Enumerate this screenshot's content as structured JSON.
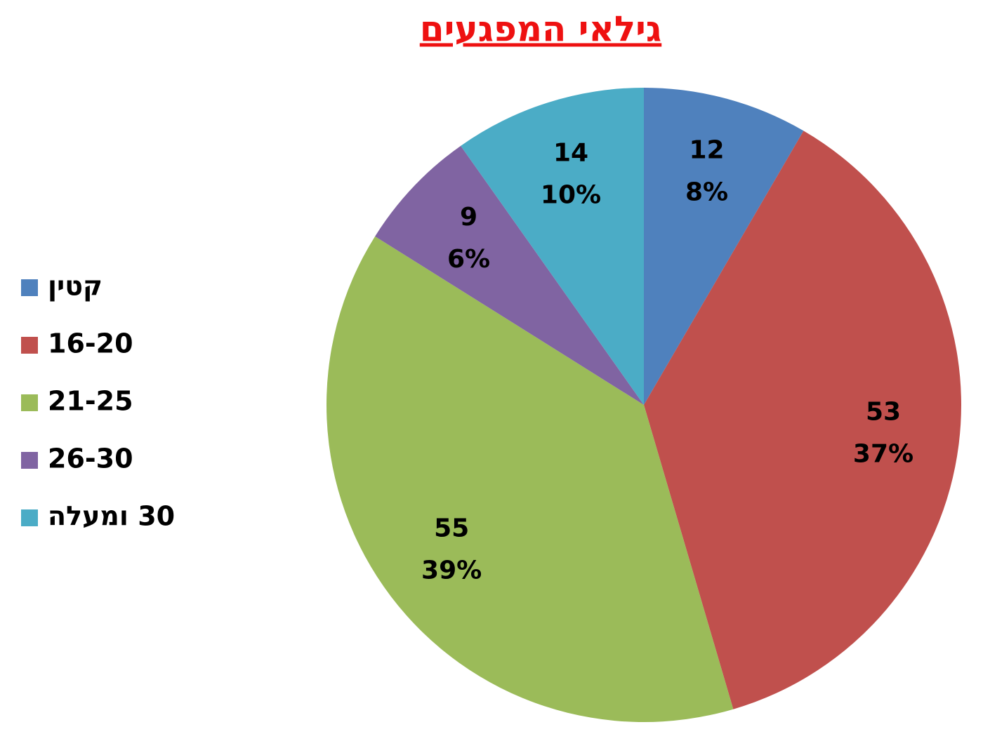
{
  "chart_data": {
    "type": "pie",
    "title": "גילאי המפגעים",
    "categories": [
      "קטין",
      "16-20",
      "21-25",
      "26-30",
      "30 ומעלה"
    ],
    "values": [
      12,
      53,
      55,
      9,
      14
    ],
    "percent_labels": [
      "8%",
      "37%",
      "39%",
      "6%",
      "10%"
    ],
    "colors": [
      "#4f81bd",
      "#c0504d",
      "#9bbb59",
      "#8064a2",
      "#4bacc6"
    ],
    "legend": "left"
  }
}
